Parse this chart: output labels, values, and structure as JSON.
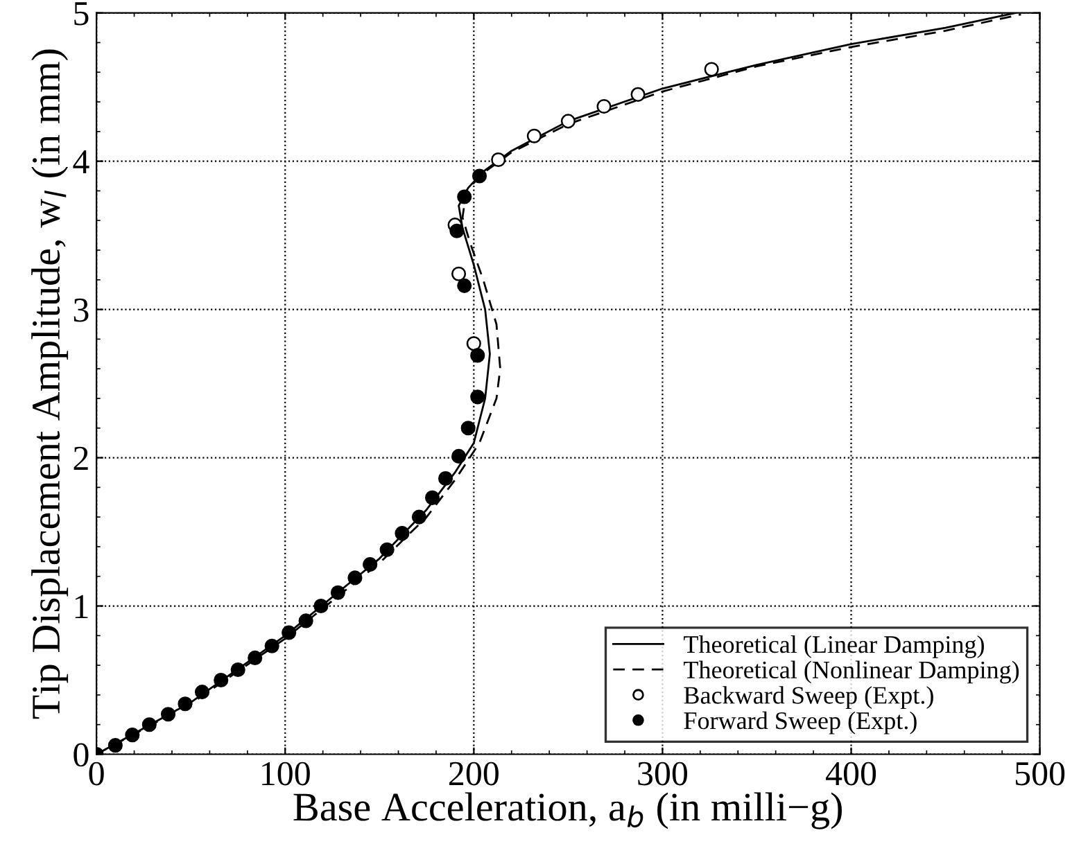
{
  "chart_data": {
    "type": "line",
    "xlabel": "Base Acceleration, a$_{b}$ (in milli−g)",
    "ylabel": "Tip Displacement Amplitude, w$_{l}$ (in mm)",
    "xlim": [
      0,
      500
    ],
    "ylim": [
      0,
      5
    ],
    "xticks": [
      0,
      100,
      200,
      300,
      400,
      500
    ],
    "yticks": [
      0,
      1,
      2,
      3,
      4,
      5
    ],
    "grid": true,
    "legend": "bottom right",
    "series": [
      {
        "name": "Theoretical (Linear Damping)",
        "line_style": "solid",
        "marker": "none",
        "color": "#000000",
        "x": [
          0,
          50,
          100,
          150,
          175,
          190,
          200,
          206,
          208.5,
          206,
          200,
          194,
          192,
          197,
          205,
          220,
          250,
          300,
          350,
          400,
          450,
          487
        ],
        "values": [
          0,
          0.35,
          0.8,
          1.32,
          1.65,
          1.9,
          2.1,
          2.4,
          2.7,
          3.0,
          3.3,
          3.55,
          3.7,
          3.82,
          3.93,
          4.07,
          4.27,
          4.49,
          4.65,
          4.79,
          4.9,
          5.0
        ]
      },
      {
        "name": "Theoretical (Nonlinear Damping)",
        "line_style": "dashed",
        "marker": "none",
        "color": "#000000",
        "x": [
          0,
          50,
          100,
          150,
          175,
          190,
          203,
          212,
          214,
          212,
          205,
          198,
          194,
          196,
          205,
          220,
          250,
          300,
          350,
          400,
          450,
          490
        ],
        "values": [
          0,
          0.34,
          0.78,
          1.29,
          1.6,
          1.85,
          2.1,
          2.4,
          2.6,
          2.9,
          3.2,
          3.45,
          3.62,
          3.8,
          3.92,
          4.06,
          4.25,
          4.47,
          4.64,
          4.77,
          4.88,
          4.99
        ]
      },
      {
        "name": "Backward Sweep (Expt.)",
        "type": "scatter",
        "marker": "circle",
        "color": "#ffffff",
        "x": [
          200,
          192,
          190,
          213,
          232,
          250,
          269,
          287,
          326
        ],
        "values": [
          2.77,
          3.24,
          3.57,
          4.01,
          4.17,
          4.27,
          4.37,
          4.45,
          4.62
        ]
      },
      {
        "name": "Forward Sweep (Expt.)",
        "type": "scatter",
        "marker": "circle",
        "color": "#000000",
        "x": [
          0,
          10,
          19,
          28,
          38,
          47,
          56,
          66,
          75,
          84,
          93,
          102,
          111,
          119,
          128,
          137,
          145,
          154,
          162,
          171,
          178,
          185,
          192,
          197,
          202,
          202,
          195,
          191,
          195,
          203
        ],
        "values": [
          0,
          0.06,
          0.13,
          0.2,
          0.27,
          0.34,
          0.42,
          0.5,
          0.57,
          0.65,
          0.73,
          0.82,
          0.9,
          1.0,
          1.09,
          1.19,
          1.28,
          1.38,
          1.49,
          1.6,
          1.73,
          1.86,
          2.01,
          2.2,
          2.41,
          2.69,
          3.16,
          3.53,
          3.76,
          3.9
        ]
      }
    ]
  }
}
